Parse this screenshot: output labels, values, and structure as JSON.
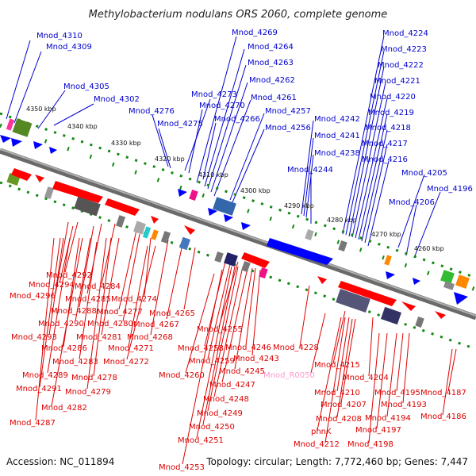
{
  "title": "Methylobacterium nodulans ORS 2060, complete genome",
  "footer": {
    "accession": "Accession: NC_011894",
    "summary": "Topology: circular; Length: 7,772,460 bp; Genes: 7,447"
  },
  "colors": {
    "plus_gene_label": "#0000cc",
    "minus_gene_label": "#dd0000",
    "rna_label": "#ff99cc",
    "plus_strand_feature": "#0000ff",
    "minus_strand_feature": "#ff0000",
    "backbone": "#8a8a8a",
    "tick_marks": "#118811"
  },
  "map": {
    "kbp_ticks": [
      "4350 kbp",
      "4340 kbp",
      "4330 kbp",
      "4320 kbp",
      "4310 kbp",
      "4300 kbp",
      "4290 kbp",
      "4280 kbp",
      "4270 kbp",
      "4260 kbp"
    ],
    "upper_labels": [
      "Mnod_4310",
      "Mnod_4309",
      "Mnod_4305",
      "Mnod_4302",
      "Mnod_4276",
      "Mnod_4275",
      "Mnod_4273",
      "Mnod_4270",
      "Mnod_4266",
      "Mnod_4269",
      "Mnod_4264",
      "Mnod_4263",
      "Mnod_4262",
      "Mnod_4261",
      "Mnod_4257",
      "Mnod_4256",
      "Mnod_4242",
      "Mnod_4241",
      "Mnod_4238",
      "Mnod_4244",
      "Mnod_4224",
      "Mnod_4223",
      "Mnod_4222",
      "Mnod_4221",
      "Mnod_4220",
      "Mnod_4219",
      "Mnod_4218",
      "Mnod_4217",
      "Mnod_4216",
      "Mnod_4205",
      "Mnod_4206",
      "Mnod_4196"
    ],
    "lower_labels": [
      "Mnod_4292",
      "Mnod_4294",
      "Mnod_4296",
      "Mnod_4285",
      "Mnod_4284",
      "Mnod_4288",
      "Mnod_4277",
      "Mnod_4274",
      "Mnod_4290",
      "Mnod_4280",
      "Mnod_4267",
      "Mnod_4265",
      "Mnod_4293",
      "Mnod_4281",
      "Mnod_4268",
      "Mnod_4286",
      "Mnod_4271",
      "Mnod_4283",
      "Mnod_4272",
      "Mnod_4289",
      "Mnod_4278",
      "Mnod_4291",
      "Mnod_4279",
      "Mnod_4282",
      "Mnod_4287",
      "Mnod_4255",
      "Mnod_4258",
      "Mnod_4246",
      "Mnod_4259",
      "Mnod_4243",
      "Mnod_4245",
      "Mnod_4260",
      "Mnod_4247",
      "Mnod_4248",
      "Mnod_4249",
      "Mnod_4250",
      "Mnod_4251",
      "Mnod_4253",
      "Mnod_4228",
      "Mnod_4215",
      "Mnod_R0050",
      "Mnod_4204",
      "Mnod_4210",
      "Mnod_4195",
      "Mnod_4187",
      "Mnod_4207",
      "Mnod_4193",
      "Mnod_4208",
      "Mnod_4194",
      "Mnod_4186",
      "phnK",
      "Mnod_4197",
      "Mnod_4212",
      "Mnod_4198"
    ]
  }
}
